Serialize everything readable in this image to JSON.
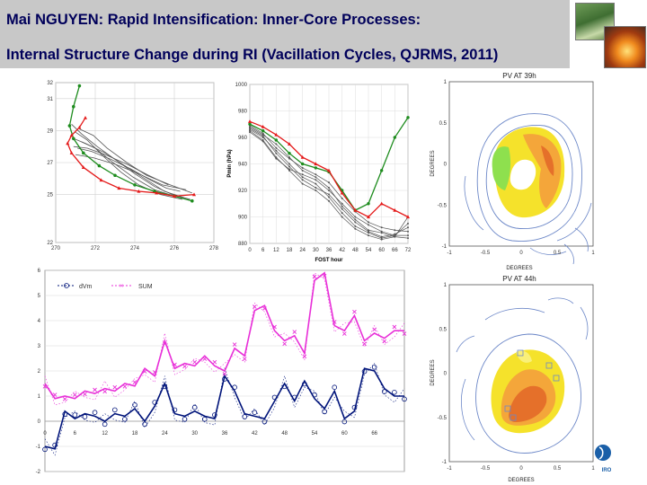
{
  "title": {
    "line1": "Mai NGUYEN: Rapid Intensification: Inner-Core Processes:",
    "line2": "Internal Structure Change during RI  (Vacillation Cycles, QJRMS, 2011)"
  },
  "images": {
    "forest": "forest-photo",
    "fire": "bushfire-photo"
  },
  "logo_text": "IRO",
  "colors": {
    "green": "#1e8c1e",
    "red": "#e41a1a",
    "gray": "#555555",
    "navy": "#00147a",
    "magenta": "#e830d8",
    "contour": "#6d88c8"
  },
  "chart_data": [
    {
      "id": "tracks",
      "type": "line",
      "xlim": [
        270,
        278
      ],
      "ylim": [
        22,
        32
      ],
      "xticks": [
        "270",
        "272",
        "274",
        "276",
        "278"
      ],
      "yticks": [
        "22",
        "25",
        "27",
        "29",
        "31",
        "32"
      ],
      "series": [
        {
          "name": "green",
          "x": [
            271.2,
            270.9,
            270.7,
            270.9,
            271.4,
            272.2,
            273.0,
            274.0,
            275.0,
            276.0,
            276.9
          ],
          "y": [
            31.8,
            30.5,
            29.3,
            28.5,
            27.6,
            26.8,
            26.2,
            25.6,
            25.2,
            24.9,
            24.6
          ]
        },
        {
          "name": "red",
          "x": [
            271.5,
            271.2,
            270.8,
            270.6,
            270.8,
            271.4,
            272.3,
            273.2,
            274.2,
            275.1,
            276.0,
            277.0
          ],
          "y": [
            29.8,
            29.2,
            28.7,
            28.2,
            27.6,
            26.7,
            25.9,
            25.4,
            25.2,
            25.1,
            24.9,
            25.0
          ]
        },
        {
          "name": "gray1",
          "x": [
            270.9,
            271.5,
            272.5,
            273.5,
            274.5,
            275.5,
            276.5
          ],
          "y": [
            28.5,
            28.2,
            27.6,
            26.8,
            26.0,
            25.2,
            24.8
          ]
        },
        {
          "name": "gray2",
          "x": [
            271.0,
            271.6,
            272.4,
            273.3,
            274.2,
            275.3,
            276.4
          ],
          "y": [
            28.9,
            28.4,
            27.4,
            26.4,
            25.6,
            25.0,
            24.7
          ]
        },
        {
          "name": "gray3",
          "x": [
            271.1,
            271.8,
            272.8,
            273.8,
            274.8,
            275.6,
            276.3
          ],
          "y": [
            27.9,
            27.7,
            27.2,
            26.6,
            25.9,
            25.4,
            25.2
          ]
        },
        {
          "name": "gray4",
          "x": [
            270.8,
            271.3,
            272.1,
            273.0,
            274.0,
            275.0,
            275.9,
            276.8
          ],
          "y": [
            29.4,
            28.8,
            28.0,
            27.2,
            26.3,
            25.5,
            25.0,
            24.7
          ]
        },
        {
          "name": "gray5",
          "x": [
            271.3,
            272.0,
            272.9,
            273.9,
            275.0,
            276.0
          ],
          "y": [
            28.3,
            27.9,
            27.0,
            26.1,
            25.3,
            24.9
          ]
        },
        {
          "name": "gray6",
          "x": [
            271.0,
            271.9,
            273.0,
            274.2,
            275.4,
            276.6
          ],
          "y": [
            27.5,
            27.3,
            26.9,
            26.3,
            25.6,
            25.3
          ]
        },
        {
          "name": "gray7",
          "x": [
            271.2,
            271.9,
            272.6,
            273.6,
            274.6,
            275.8,
            276.9
          ],
          "y": [
            29.1,
            28.7,
            27.9,
            27.0,
            26.2,
            25.6,
            25.1
          ]
        },
        {
          "name": "gray8",
          "x": [
            270.9,
            271.6,
            272.5,
            273.6,
            274.7,
            275.7
          ],
          "y": [
            28.0,
            27.9,
            27.5,
            26.9,
            26.2,
            25.6
          ]
        }
      ]
    },
    {
      "id": "pmin",
      "type": "line",
      "xlabel": "FOST hour",
      "ylabel": "Pmin (hPa)",
      "xlim": [
        0,
        72
      ],
      "ylim": [
        880,
        1000
      ],
      "xticks": [
        "0",
        "6",
        "12",
        "18",
        "24",
        "30",
        "36",
        "42",
        "48",
        "54",
        "60",
        "66",
        "72"
      ],
      "yticks": [
        "880",
        "900",
        "920",
        "940",
        "960",
        "980",
        "1000"
      ],
      "series": [
        {
          "name": "green",
          "x": [
            0,
            6,
            12,
            18,
            24,
            30,
            36,
            42,
            48,
            54,
            60,
            66,
            72
          ],
          "y": [
            970,
            965,
            958,
            948,
            940,
            937,
            934,
            920,
            905,
            910,
            935,
            960,
            975
          ]
        },
        {
          "name": "red",
          "x": [
            0,
            6,
            12,
            18,
            24,
            30,
            36,
            42,
            48,
            54,
            60,
            66,
            72
          ],
          "y": [
            972,
            968,
            962,
            955,
            945,
            940,
            935,
            918,
            905,
            900,
            910,
            905,
            900
          ]
        },
        {
          "name": "gray1",
          "x": [
            0,
            6,
            12,
            18,
            24,
            30,
            36,
            42,
            48,
            54,
            60,
            66,
            72
          ],
          "y": [
            968,
            962,
            955,
            945,
            935,
            930,
            922,
            908,
            898,
            890,
            888,
            885,
            884
          ]
        },
        {
          "name": "gray2",
          "x": [
            0,
            6,
            12,
            18,
            24,
            30,
            36,
            42,
            48,
            54,
            60,
            66,
            72
          ],
          "y": [
            966,
            960,
            950,
            940,
            930,
            925,
            915,
            903,
            893,
            888,
            884,
            886,
            895
          ]
        },
        {
          "name": "gray3",
          "x": [
            0,
            6,
            12,
            18,
            24,
            30,
            36,
            42,
            48,
            54,
            60,
            66,
            72
          ],
          "y": [
            965,
            958,
            945,
            935,
            925,
            920,
            912,
            900,
            891,
            886,
            883,
            885,
            900
          ]
        },
        {
          "name": "gray4",
          "x": [
            0,
            6,
            12,
            18,
            24,
            30,
            36,
            42,
            48,
            54,
            60,
            66,
            72
          ],
          "y": [
            969,
            963,
            952,
            944,
            937,
            932,
            926,
            914,
            904,
            896,
            892,
            890,
            889
          ]
        },
        {
          "name": "gray5",
          "x": [
            0,
            6,
            12,
            18,
            24,
            30,
            36,
            42,
            48,
            54,
            60,
            66,
            72
          ],
          "y": [
            967,
            961,
            948,
            938,
            928,
            922,
            917,
            906,
            896,
            889,
            885,
            887,
            892
          ]
        },
        {
          "name": "gray6",
          "x": [
            0,
            6,
            12,
            18,
            24,
            30,
            36,
            42,
            48,
            54,
            60,
            66,
            72
          ],
          "y": [
            964,
            957,
            944,
            936,
            932,
            928,
            920,
            910,
            900,
            894,
            889,
            886,
            886
          ]
        }
      ]
    },
    {
      "id": "timeseries",
      "type": "line",
      "xlim": [
        0,
        72
      ],
      "ylim": [
        -2,
        6
      ],
      "xticks": [
        "0",
        "6",
        "12",
        "18",
        "24",
        "30",
        "36",
        "42",
        "48",
        "54",
        "60",
        "66"
      ],
      "yticks": [
        "-2",
        "-1",
        "0",
        "1",
        "2",
        "3",
        "4",
        "5",
        "6"
      ],
      "legend": [
        "dVm",
        "SUM"
      ],
      "series": [
        {
          "name": "dVm",
          "x": [
            0,
            2,
            4,
            6,
            8,
            10,
            12,
            14,
            16,
            18,
            20,
            22,
            24,
            26,
            28,
            30,
            32,
            34,
            36,
            38,
            40,
            42,
            44,
            46,
            48,
            50,
            52,
            54,
            56,
            58,
            60,
            62,
            64,
            66,
            68,
            70,
            72
          ],
          "y": [
            -1.0,
            -1.1,
            0.4,
            0.1,
            0.3,
            0.2,
            0.0,
            0.3,
            0.2,
            0.5,
            0.0,
            0.6,
            1.5,
            0.3,
            0.2,
            0.4,
            0.2,
            0.1,
            1.8,
            1.2,
            0.3,
            0.2,
            0.1,
            0.8,
            1.5,
            0.8,
            1.6,
            0.9,
            0.5,
            1.2,
            0.1,
            0.4,
            2.1,
            2.0,
            1.3,
            1.0,
            1.0
          ]
        },
        {
          "name": "SUM",
          "x": [
            0,
            2,
            4,
            6,
            8,
            10,
            12,
            14,
            16,
            18,
            20,
            22,
            24,
            26,
            28,
            30,
            32,
            34,
            36,
            38,
            40,
            42,
            44,
            46,
            48,
            50,
            52,
            54,
            56,
            58,
            60,
            62,
            64,
            66,
            68,
            70,
            72
          ],
          "y": [
            1.5,
            0.9,
            1.0,
            0.9,
            1.2,
            1.1,
            1.3,
            1.2,
            1.5,
            1.4,
            2.1,
            1.8,
            3.2,
            2.1,
            2.3,
            2.2,
            2.6,
            2.2,
            2.0,
            2.9,
            2.6,
            4.4,
            4.6,
            3.6,
            3.2,
            3.4,
            2.7,
            5.6,
            5.9,
            3.8,
            3.6,
            4.2,
            3.2,
            3.5,
            3.3,
            3.6,
            3.6
          ]
        }
      ]
    },
    {
      "id": "pv39",
      "type": "heatmap",
      "title": "PV AT 39h",
      "xlabel": "DEGREES",
      "ylabel": "DEGREES",
      "xlim": [
        -1,
        1
      ],
      "ylim": [
        -1,
        1
      ],
      "xticks": [
        "-1",
        "-0.5",
        "0",
        "0.5",
        "1"
      ],
      "yticks": [
        "-1",
        "-0.5",
        "0",
        "0.5",
        "1"
      ]
    },
    {
      "id": "pv44",
      "type": "heatmap",
      "title": "PV AT 44h",
      "xlabel": "DEGREES",
      "ylabel": "DEGREES",
      "xlim": [
        -1,
        1
      ],
      "ylim": [
        -1,
        1
      ],
      "xticks": [
        "-1",
        "-0.5",
        "0",
        "0.5",
        "1"
      ],
      "yticks": [
        "-1",
        "-0.5",
        "0",
        "0.5",
        "1"
      ]
    }
  ]
}
